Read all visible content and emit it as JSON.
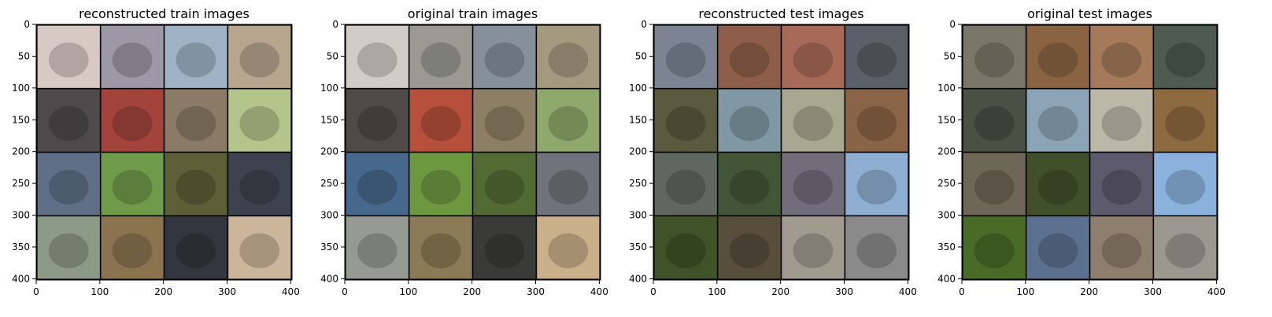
{
  "chart_data": [
    {
      "type": "image",
      "title": "reconstructed train images",
      "xlim": [
        0,
        402
      ],
      "ylim": [
        402,
        0
      ],
      "xticks": [
        0,
        100,
        200,
        300,
        400
      ],
      "yticks": [
        0,
        50,
        100,
        150,
        200,
        250,
        300,
        350,
        400
      ],
      "tiles": [
        "#d9c9c4",
        "#9c98a6",
        "#9fb2c6",
        "#b8a58e",
        "#4e4a4c",
        "#a3443c",
        "#8a7a66",
        "#b4c58c",
        "#5f6f88",
        "#6f9a4a",
        "#5d5f36",
        "#3d434e",
        "#8e9a88",
        "#8b7350",
        "#33363e",
        "#cbb59b"
      ]
    },
    {
      "type": "image",
      "title": "original train images",
      "xlim": [
        0,
        402
      ],
      "ylim": [
        402,
        0
      ],
      "xticks": [
        0,
        100,
        200,
        300,
        400
      ],
      "yticks": [
        0,
        50,
        100,
        150,
        200,
        250,
        300,
        350,
        400
      ],
      "tiles": [
        "#d3cbc6",
        "#9a9a93",
        "#86909a",
        "#a49a80",
        "#4f4a48",
        "#b6503d",
        "#8d7f63",
        "#8fa86b",
        "#46688c",
        "#6e9840",
        "#526b35",
        "#71737c",
        "#979a93",
        "#8a7a55",
        "#3a3a38",
        "#c9b08a"
      ]
    },
    {
      "type": "image",
      "title": "reconstructed test images",
      "xlim": [
        0,
        402
      ],
      "ylim": [
        402,
        0
      ],
      "xticks": [
        0,
        100,
        200,
        300,
        400
      ],
      "yticks": [
        0,
        50,
        100,
        150,
        200,
        250,
        300,
        350,
        400
      ],
      "tiles": [
        "#7c8494",
        "#8e5e4a",
        "#a86a58",
        "#5a6068",
        "#5a5a3e",
        "#7f98a4",
        "#a8a890",
        "#8a6446",
        "#606760",
        "#425536",
        "#716d7b",
        "#8eaed2",
        "#3f5228",
        "#574e3c",
        "#a09a8f",
        "#8a8a8a"
      ]
    },
    {
      "type": "image",
      "title": "original test images",
      "xlim": [
        0,
        402
      ],
      "ylim": [
        402,
        0
      ],
      "xticks": [
        0,
        100,
        200,
        300,
        400
      ],
      "yticks": [
        0,
        50,
        100,
        150,
        200,
        250,
        300,
        350,
        400
      ],
      "tiles": [
        "#7b7768",
        "#8a6442",
        "#a47a5a",
        "#4e5b4e",
        "#4a5044",
        "#8ba4b8",
        "#bdb7a8",
        "#8e6a40",
        "#6e6656",
        "#40502a",
        "#5c5a6c",
        "#8ab2dc",
        "#4a6a28",
        "#5c7090",
        "#8e7e6e",
        "#9c9890"
      ]
    }
  ]
}
